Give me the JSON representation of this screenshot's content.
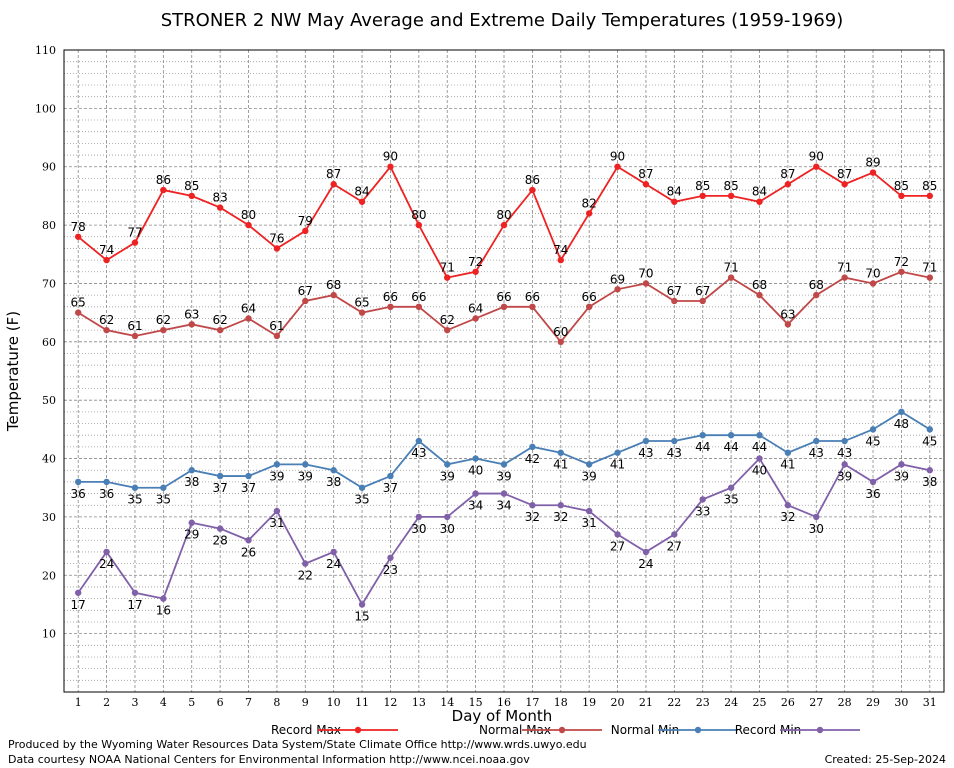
{
  "chart_data": {
    "type": "line",
    "title": "STRONER 2 NW May Average and Extreme Daily Temperatures (1959-1969)",
    "xlabel": "Day of Month",
    "ylabel": "Temperature (F)",
    "x": [
      1,
      2,
      3,
      4,
      5,
      6,
      7,
      8,
      9,
      10,
      11,
      12,
      13,
      14,
      15,
      16,
      17,
      18,
      19,
      20,
      21,
      22,
      23,
      24,
      25,
      26,
      27,
      28,
      29,
      30,
      31
    ],
    "xlim": [
      0.5,
      31.5
    ],
    "ylim": [
      0,
      110
    ],
    "yticks": [
      10,
      20,
      30,
      40,
      50,
      60,
      70,
      80,
      90,
      100,
      110
    ],
    "grid": true,
    "legend": "bottom",
    "series": [
      {
        "name": "Record Max",
        "color": "#ee2222",
        "values": [
          78,
          74,
          77,
          86,
          85,
          83,
          80,
          76,
          79,
          87,
          84,
          90,
          80,
          71,
          72,
          80,
          86,
          74,
          82,
          90,
          87,
          84,
          85,
          85,
          84,
          87,
          90,
          87,
          89,
          85,
          85
        ]
      },
      {
        "name": "Normal Max",
        "color": "#c04848",
        "values": [
          65,
          62,
          61,
          62,
          63,
          62,
          64,
          61,
          67,
          68,
          65,
          66,
          66,
          62,
          64,
          66,
          66,
          60,
          66,
          69,
          70,
          67,
          67,
          71,
          68,
          63,
          68,
          71,
          70,
          72,
          71
        ]
      },
      {
        "name": "Normal Min",
        "color": "#4a7fb5",
        "values": [
          36,
          36,
          35,
          35,
          38,
          37,
          37,
          39,
          39,
          38,
          35,
          37,
          43,
          39,
          40,
          39,
          42,
          41,
          39,
          41,
          43,
          43,
          44,
          44,
          44,
          41,
          43,
          43,
          45,
          48,
          45
        ]
      },
      {
        "name": "Record Min",
        "color": "#8060a8",
        "values": [
          17,
          24,
          17,
          16,
          29,
          28,
          26,
          31,
          22,
          24,
          15,
          23,
          30,
          30,
          34,
          34,
          32,
          32,
          31,
          27,
          24,
          27,
          33,
          35,
          40,
          32,
          30,
          39,
          36,
          39,
          38
        ]
      }
    ]
  },
  "footer": {
    "produced_by": "Produced by the Wyoming Water Resources Data System/State Climate Office http://www.wrds.uwyo.edu",
    "courtesy": "Data courtesy NOAA National Centers for Environmental Information http://www.ncei.noaa.gov",
    "created": "Created:  25-Sep-2024"
  }
}
